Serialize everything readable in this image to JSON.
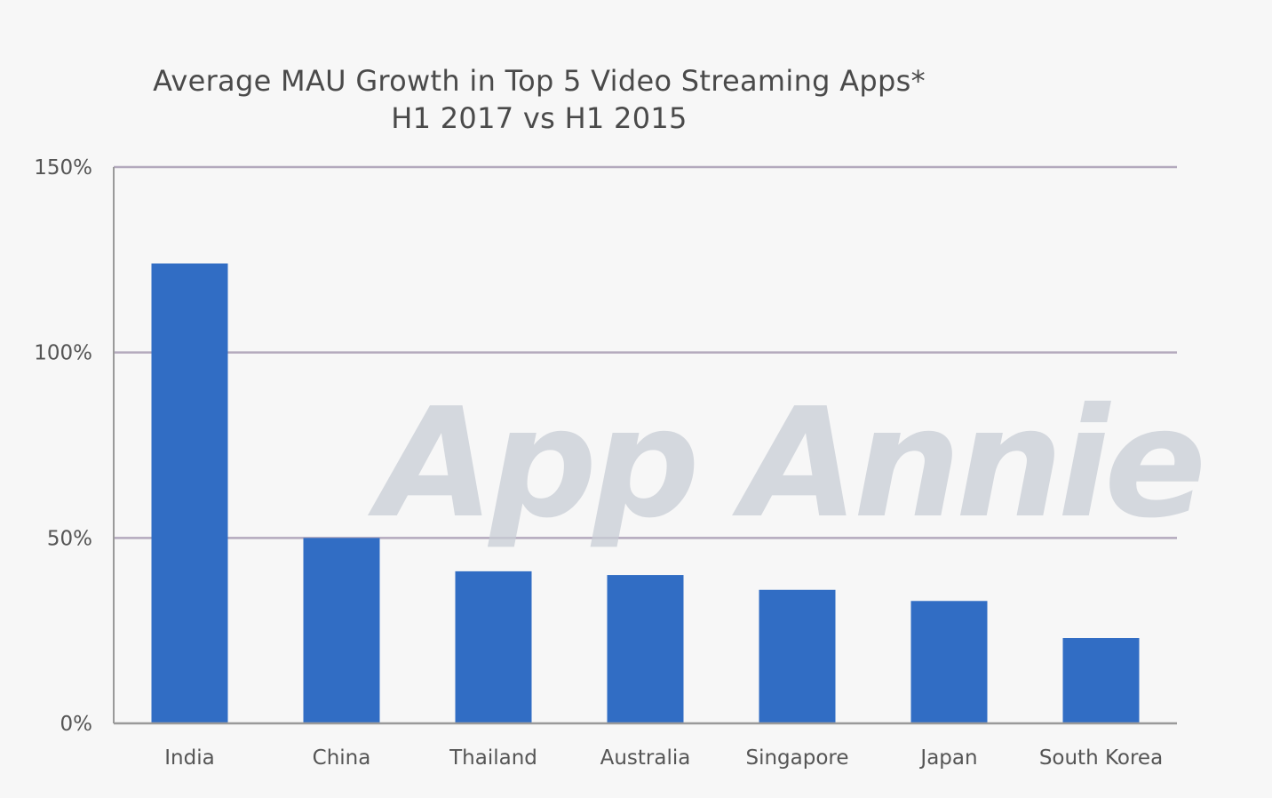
{
  "chart_data": {
    "type": "bar",
    "title": "Average MAU Growth in Top 5 Video Streaming Apps*",
    "subtitle": "H1 2017 vs H1 2015",
    "categories": [
      "India",
      "China",
      "Thailand",
      "Australia",
      "Singapore",
      "Japan",
      "South Korea"
    ],
    "values": [
      124,
      50,
      41,
      40,
      36,
      33,
      23
    ],
    "ylim": [
      0,
      150
    ],
    "yticks": [
      0,
      50,
      100,
      150
    ],
    "ytick_labels": [
      "0%",
      "50%",
      "100%",
      "150%"
    ],
    "unit": "%",
    "grid": true,
    "colors": {
      "bar": "#316dc4",
      "grid": "#b3a9bd",
      "axis": "#9a9a9a",
      "text": "#4a4a4a"
    }
  },
  "watermark": {
    "text": "App Annie"
  }
}
